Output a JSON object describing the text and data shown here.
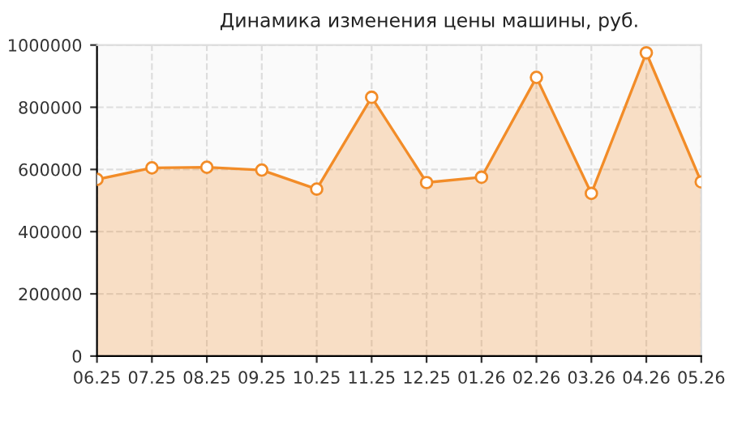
{
  "chart_data": {
    "type": "area",
    "title": "Динамика изменения цены машины, руб.",
    "categories": [
      "06.25",
      "07.25",
      "08.25",
      "09.25",
      "10.25",
      "11.25",
      "12.25",
      "01.26",
      "02.26",
      "03.26",
      "04.26",
      "05.26"
    ],
    "series": [
      {
        "color": "#f28c28",
        "values": [
          568000,
          605000,
          607000,
          598000,
          537000,
          832000,
          558000,
          575000,
          896000,
          523000,
          975000,
          560000
        ]
      }
    ],
    "ylim": [
      0,
      1000000
    ],
    "yticks": [
      0,
      200000,
      400000,
      600000,
      800000,
      1000000
    ],
    "grid": true,
    "marker": "circle",
    "line_style": "solid"
  }
}
